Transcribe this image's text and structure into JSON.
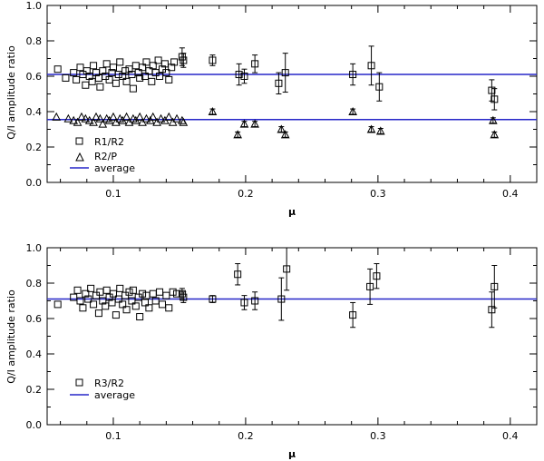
{
  "colors": {
    "axis": "#000000",
    "average": "#2626c8",
    "marker": "#000000"
  },
  "chart_data": [
    {
      "type": "scatter",
      "xlabel": "μ",
      "ylabel": "Q/I amplitude ratio",
      "xlim": [
        0.05,
        0.42
      ],
      "ylim": [
        0.0,
        1.0
      ],
      "xticks": [
        0.1,
        0.2,
        0.3,
        0.4
      ],
      "xtick_labels": [
        "0.1",
        "0.2",
        "0.3",
        "0.4"
      ],
      "yticks": [
        0.0,
        0.2,
        0.4,
        0.6,
        0.8,
        1.0
      ],
      "ytick_labels": [
        "0.0",
        "0.2",
        "0.4",
        "0.6",
        "0.8",
        "1.0"
      ],
      "legend": {
        "position": "bottom-left",
        "entries": [
          "R1/R2",
          "R2/P",
          "average"
        ]
      },
      "series": [
        {
          "name": "R1/R2",
          "marker": "square",
          "points": [
            [
              0.058,
              0.64
            ],
            [
              0.064,
              0.59
            ],
            [
              0.07,
              0.62
            ],
            [
              0.072,
              0.58
            ],
            [
              0.075,
              0.65
            ],
            [
              0.077,
              0.61
            ],
            [
              0.079,
              0.55
            ],
            [
              0.08,
              0.63
            ],
            [
              0.082,
              0.6
            ],
            [
              0.084,
              0.57
            ],
            [
              0.085,
              0.66
            ],
            [
              0.087,
              0.62
            ],
            [
              0.089,
              0.59
            ],
            [
              0.09,
              0.54
            ],
            [
              0.092,
              0.63
            ],
            [
              0.094,
              0.6
            ],
            [
              0.095,
              0.67
            ],
            [
              0.097,
              0.58
            ],
            [
              0.099,
              0.62
            ],
            [
              0.1,
              0.65
            ],
            [
              0.102,
              0.56
            ],
            [
              0.104,
              0.61
            ],
            [
              0.105,
              0.68
            ],
            [
              0.107,
              0.6
            ],
            [
              0.109,
              0.63
            ],
            [
              0.11,
              0.57
            ],
            [
              0.112,
              0.64
            ],
            [
              0.114,
              0.61
            ],
            [
              0.115,
              0.53
            ],
            [
              0.117,
              0.66
            ],
            [
              0.119,
              0.62
            ],
            [
              0.12,
              0.59
            ],
            [
              0.122,
              0.65
            ],
            [
              0.124,
              0.6
            ],
            [
              0.125,
              0.68
            ],
            [
              0.127,
              0.63
            ],
            [
              0.129,
              0.57
            ],
            [
              0.13,
              0.66
            ],
            [
              0.132,
              0.62
            ],
            [
              0.134,
              0.69
            ],
            [
              0.135,
              0.6
            ],
            [
              0.137,
              0.64
            ],
            [
              0.139,
              0.67
            ],
            [
              0.14,
              0.62
            ],
            [
              0.142,
              0.58
            ],
            [
              0.144,
              0.65
            ],
            [
              0.146,
              0.68
            ]
          ],
          "errorbar_points": [
            {
              "x": 0.152,
              "y": 0.71,
              "err": 0.05
            },
            {
              "x": 0.153,
              "y": 0.69,
              "err": 0.04
            },
            {
              "x": 0.175,
              "y": 0.69,
              "err": 0.03
            },
            {
              "x": 0.195,
              "y": 0.61,
              "err": 0.06
            },
            {
              "x": 0.199,
              "y": 0.6,
              "err": 0.04
            },
            {
              "x": 0.207,
              "y": 0.67,
              "err": 0.05
            },
            {
              "x": 0.225,
              "y": 0.56,
              "err": 0.06
            },
            {
              "x": 0.23,
              "y": 0.62,
              "err": 0.11
            },
            {
              "x": 0.281,
              "y": 0.61,
              "err": 0.06
            },
            {
              "x": 0.295,
              "y": 0.66,
              "err": 0.11
            },
            {
              "x": 0.301,
              "y": 0.54,
              "err": 0.08
            },
            {
              "x": 0.386,
              "y": 0.52,
              "err": 0.06
            },
            {
              "x": 0.388,
              "y": 0.47,
              "err": 0.06
            }
          ]
        },
        {
          "name": "R2/P",
          "marker": "triangle",
          "points": [
            [
              0.057,
              0.37
            ],
            [
              0.066,
              0.36
            ],
            [
              0.07,
              0.35
            ],
            [
              0.073,
              0.34
            ],
            [
              0.076,
              0.37
            ],
            [
              0.079,
              0.36
            ],
            [
              0.082,
              0.35
            ],
            [
              0.085,
              0.34
            ],
            [
              0.087,
              0.37
            ],
            [
              0.09,
              0.36
            ],
            [
              0.092,
              0.33
            ],
            [
              0.095,
              0.36
            ],
            [
              0.097,
              0.35
            ],
            [
              0.1,
              0.37
            ],
            [
              0.102,
              0.34
            ],
            [
              0.105,
              0.36
            ],
            [
              0.107,
              0.35
            ],
            [
              0.11,
              0.37
            ],
            [
              0.112,
              0.34
            ],
            [
              0.115,
              0.36
            ],
            [
              0.117,
              0.35
            ],
            [
              0.12,
              0.37
            ],
            [
              0.122,
              0.34
            ],
            [
              0.125,
              0.36
            ],
            [
              0.128,
              0.35
            ],
            [
              0.13,
              0.37
            ],
            [
              0.133,
              0.34
            ],
            [
              0.136,
              0.36
            ],
            [
              0.139,
              0.35
            ],
            [
              0.142,
              0.37
            ],
            [
              0.145,
              0.34
            ],
            [
              0.148,
              0.36
            ],
            [
              0.152,
              0.35
            ],
            [
              0.153,
              0.34
            ]
          ],
          "errorbar_points": [
            {
              "x": 0.175,
              "y": 0.4,
              "err": 0.015
            },
            {
              "x": 0.194,
              "y": 0.27,
              "err": 0.015
            },
            {
              "x": 0.199,
              "y": 0.33,
              "err": 0.015
            },
            {
              "x": 0.207,
              "y": 0.33,
              "err": 0.015
            },
            {
              "x": 0.227,
              "y": 0.3,
              "err": 0.015
            },
            {
              "x": 0.23,
              "y": 0.27,
              "err": 0.015
            },
            {
              "x": 0.281,
              "y": 0.4,
              "err": 0.015
            },
            {
              "x": 0.295,
              "y": 0.3,
              "err": 0.015
            },
            {
              "x": 0.302,
              "y": 0.29,
              "err": 0.015
            },
            {
              "x": 0.387,
              "y": 0.35,
              "err": 0.015
            },
            {
              "x": 0.388,
              "y": 0.27,
              "err": 0.015
            }
          ]
        }
      ],
      "reference_lines": [
        {
          "name": "average",
          "y": 0.61
        },
        {
          "name": "average",
          "y": 0.355
        }
      ]
    },
    {
      "type": "scatter",
      "xlabel": "μ",
      "ylabel": "Q/I amplitude ratio",
      "xlim": [
        0.05,
        0.42
      ],
      "ylim": [
        0.0,
        1.0
      ],
      "xticks": [
        0.1,
        0.2,
        0.3,
        0.4
      ],
      "xtick_labels": [
        "0.1",
        "0.2",
        "0.3",
        "0.4"
      ],
      "yticks": [
        0.0,
        0.2,
        0.4,
        0.6,
        0.8,
        1.0
      ],
      "ytick_labels": [
        "0.0",
        "0.2",
        "0.4",
        "0.6",
        "0.8",
        "1.0"
      ],
      "legend": {
        "position": "bottom-left",
        "entries": [
          "R3/R2",
          "average"
        ]
      },
      "series": [
        {
          "name": "R3/R2",
          "marker": "square",
          "points": [
            [
              0.058,
              0.68
            ],
            [
              0.07,
              0.72
            ],
            [
              0.073,
              0.76
            ],
            [
              0.075,
              0.7
            ],
            [
              0.077,
              0.66
            ],
            [
              0.079,
              0.74
            ],
            [
              0.081,
              0.71
            ],
            [
              0.083,
              0.77
            ],
            [
              0.085,
              0.68
            ],
            [
              0.087,
              0.73
            ],
            [
              0.089,
              0.63
            ],
            [
              0.09,
              0.75
            ],
            [
              0.092,
              0.7
            ],
            [
              0.094,
              0.67
            ],
            [
              0.095,
              0.76
            ],
            [
              0.097,
              0.72
            ],
            [
              0.099,
              0.69
            ],
            [
              0.1,
              0.74
            ],
            [
              0.102,
              0.62
            ],
            [
              0.104,
              0.71
            ],
            [
              0.105,
              0.77
            ],
            [
              0.107,
              0.68
            ],
            [
              0.109,
              0.73
            ],
            [
              0.11,
              0.65
            ],
            [
              0.112,
              0.75
            ],
            [
              0.114,
              0.7
            ],
            [
              0.115,
              0.76
            ],
            [
              0.117,
              0.67
            ],
            [
              0.119,
              0.72
            ],
            [
              0.12,
              0.61
            ],
            [
              0.122,
              0.74
            ],
            [
              0.124,
              0.69
            ],
            [
              0.125,
              0.73
            ],
            [
              0.127,
              0.66
            ],
            [
              0.13,
              0.74
            ],
            [
              0.132,
              0.7
            ],
            [
              0.135,
              0.75
            ],
            [
              0.137,
              0.68
            ],
            [
              0.14,
              0.73
            ],
            [
              0.142,
              0.66
            ],
            [
              0.145,
              0.75
            ],
            [
              0.148,
              0.74
            ]
          ],
          "errorbar_points": [
            {
              "x": 0.152,
              "y": 0.74,
              "err": 0.03
            },
            {
              "x": 0.153,
              "y": 0.72,
              "err": 0.03
            },
            {
              "x": 0.175,
              "y": 0.71,
              "err": 0.02
            },
            {
              "x": 0.194,
              "y": 0.85,
              "err": 0.06
            },
            {
              "x": 0.199,
              "y": 0.69,
              "err": 0.04
            },
            {
              "x": 0.207,
              "y": 0.7,
              "err": 0.05
            },
            {
              "x": 0.227,
              "y": 0.71,
              "err": 0.12
            },
            {
              "x": 0.231,
              "y": 0.88,
              "err": 0.12
            },
            {
              "x": 0.281,
              "y": 0.62,
              "err": 0.07
            },
            {
              "x": 0.294,
              "y": 0.78,
              "err": 0.1
            },
            {
              "x": 0.299,
              "y": 0.84,
              "err": 0.07
            },
            {
              "x": 0.386,
              "y": 0.65,
              "err": 0.1
            },
            {
              "x": 0.388,
              "y": 0.78,
              "err": 0.12
            }
          ]
        }
      ],
      "reference_lines": [
        {
          "name": "average",
          "y": 0.71
        }
      ]
    }
  ]
}
